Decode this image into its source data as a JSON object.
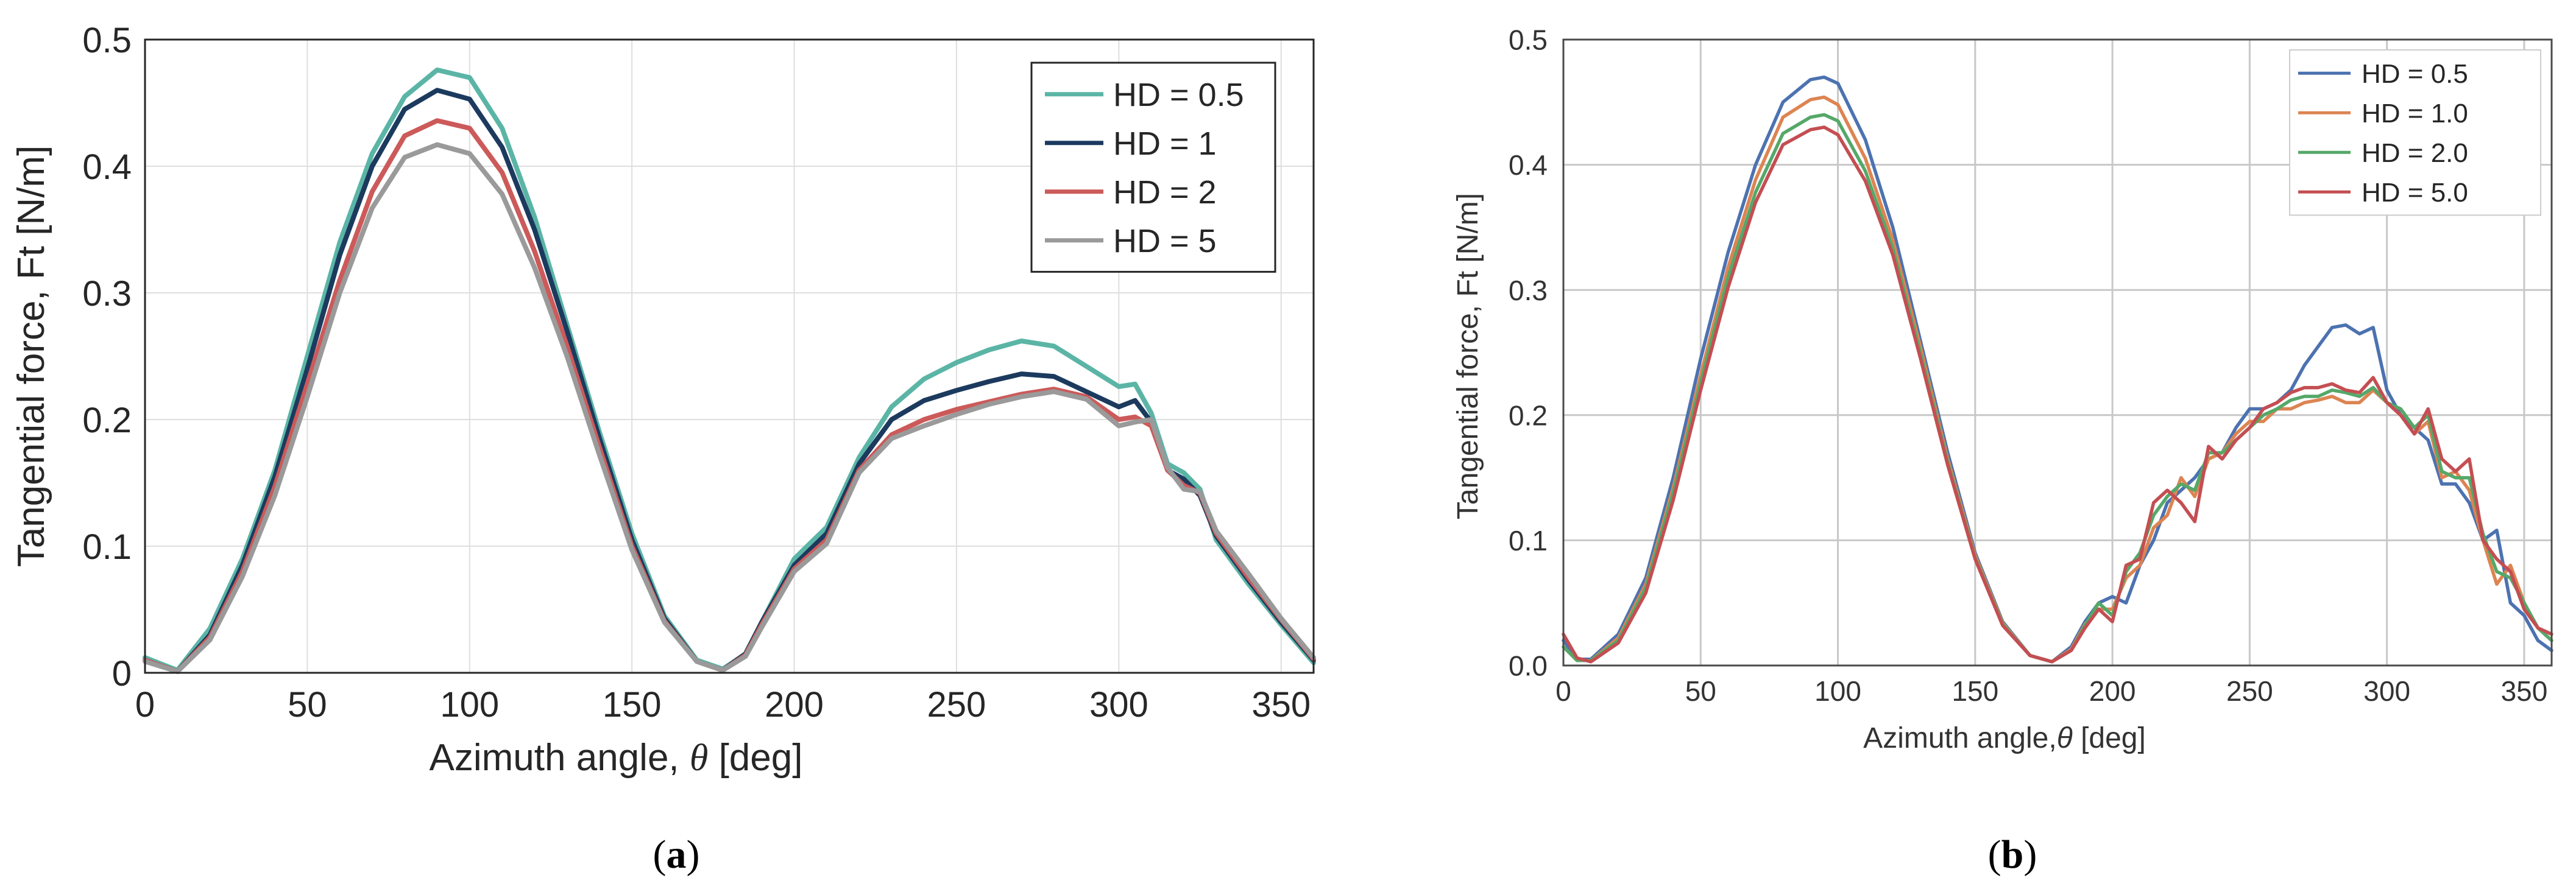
{
  "chart_data": [
    {
      "type": "line",
      "panel_label": "(a)",
      "title": "",
      "xlabel_main": "Azimuth angle, ",
      "xlabel_symbol": "θ",
      "xlabel_unit": " [deg]",
      "ylabel": "Tangential force, Ft [N/m]",
      "xlim": [
        0,
        360
      ],
      "ylim": [
        0,
        0.5
      ],
      "xticks": [
        0,
        50,
        100,
        150,
        200,
        250,
        300,
        350
      ],
      "yticks": [
        0,
        0.1,
        0.2,
        0.3,
        0.4,
        0.5
      ],
      "ytick_labels": [
        "0",
        "0.1",
        "0.2",
        "0.3",
        "0.4",
        "0.5"
      ],
      "grid": true,
      "legend_position": "top-right",
      "x": [
        0,
        10,
        20,
        30,
        40,
        50,
        60,
        70,
        80,
        90,
        100,
        110,
        120,
        130,
        140,
        150,
        160,
        170,
        178,
        185,
        190,
        200,
        210,
        220,
        230,
        240,
        250,
        260,
        270,
        280,
        290,
        300,
        305,
        310,
        315,
        320,
        325,
        330,
        340,
        350,
        360
      ],
      "series": [
        {
          "name": "HD = 0.5",
          "color": "#5bb5a6",
          "values": [
            0.012,
            0.002,
            0.035,
            0.09,
            0.16,
            0.25,
            0.34,
            0.41,
            0.455,
            0.476,
            0.47,
            0.43,
            0.36,
            0.275,
            0.19,
            0.11,
            0.045,
            0.01,
            0.003,
            0.015,
            0.04,
            0.09,
            0.115,
            0.17,
            0.21,
            0.232,
            0.245,
            0.255,
            0.262,
            0.258,
            0.242,
            0.226,
            0.228,
            0.205,
            0.165,
            0.158,
            0.145,
            0.105,
            0.07,
            0.038,
            0.008
          ]
        },
        {
          "name": "HD = 1",
          "color": "#1c3a5e",
          "values": [
            0.01,
            0.001,
            0.03,
            0.085,
            0.155,
            0.24,
            0.33,
            0.4,
            0.445,
            0.46,
            0.453,
            0.415,
            0.35,
            0.27,
            0.185,
            0.105,
            0.043,
            0.009,
            0.002,
            0.015,
            0.04,
            0.085,
            0.11,
            0.165,
            0.2,
            0.215,
            0.223,
            0.23,
            0.236,
            0.234,
            0.222,
            0.21,
            0.215,
            0.198,
            0.16,
            0.153,
            0.14,
            0.108,
            0.073,
            0.04,
            0.01
          ]
        },
        {
          "name": "HD = 2",
          "color": "#cc5a5a",
          "values": [
            0.01,
            0.001,
            0.028,
            0.08,
            0.147,
            0.228,
            0.31,
            0.38,
            0.424,
            0.436,
            0.43,
            0.395,
            0.333,
            0.258,
            0.178,
            0.1,
            0.041,
            0.009,
            0.002,
            0.014,
            0.038,
            0.082,
            0.105,
            0.16,
            0.188,
            0.2,
            0.208,
            0.214,
            0.22,
            0.224,
            0.218,
            0.2,
            0.202,
            0.195,
            0.16,
            0.148,
            0.142,
            0.11,
            0.075,
            0.042,
            0.011
          ]
        },
        {
          "name": "HD = 5",
          "color": "#9a9a9a",
          "values": [
            0.009,
            0.001,
            0.026,
            0.076,
            0.14,
            0.218,
            0.3,
            0.367,
            0.407,
            0.417,
            0.41,
            0.378,
            0.32,
            0.25,
            0.172,
            0.097,
            0.04,
            0.009,
            0.002,
            0.013,
            0.036,
            0.08,
            0.102,
            0.158,
            0.185,
            0.195,
            0.204,
            0.212,
            0.218,
            0.222,
            0.216,
            0.195,
            0.198,
            0.2,
            0.162,
            0.145,
            0.143,
            0.112,
            0.078,
            0.043,
            0.012
          ]
        }
      ]
    },
    {
      "type": "line",
      "panel_label": "(b)",
      "title": "",
      "xlabel_main": "Azimuth angle,",
      "xlabel_symbol": "θ",
      "xlabel_unit": "  [deg]",
      "ylabel": "Tangential force, Ft  [N/m]",
      "xlim": [
        0,
        360
      ],
      "ylim": [
        0,
        0.5
      ],
      "xticks": [
        0,
        50,
        100,
        150,
        200,
        250,
        300,
        350
      ],
      "yticks": [
        0,
        0.1,
        0.2,
        0.3,
        0.4,
        0.5
      ],
      "ytick_labels": [
        "0.0",
        "0.1",
        "0.2",
        "0.3",
        "0.4",
        "0.5"
      ],
      "grid": true,
      "legend_position": "top-right",
      "x": [
        0,
        5,
        10,
        20,
        30,
        40,
        50,
        60,
        70,
        80,
        90,
        95,
        100,
        110,
        120,
        130,
        140,
        150,
        160,
        170,
        178,
        185,
        190,
        195,
        200,
        205,
        210,
        215,
        220,
        225,
        230,
        235,
        240,
        245,
        250,
        255,
        260,
        265,
        270,
        275,
        280,
        285,
        290,
        295,
        300,
        305,
        310,
        315,
        320,
        325,
        330,
        335,
        340,
        345,
        350,
        355,
        360
      ],
      "series": [
        {
          "name": "HD = 0.5",
          "color": "#4c72b0",
          "values": [
            0.02,
            0.005,
            0.005,
            0.025,
            0.07,
            0.15,
            0.245,
            0.33,
            0.4,
            0.45,
            0.468,
            0.47,
            0.465,
            0.42,
            0.35,
            0.26,
            0.17,
            0.09,
            0.035,
            0.008,
            0.003,
            0.015,
            0.035,
            0.05,
            0.055,
            0.05,
            0.08,
            0.1,
            0.13,
            0.14,
            0.15,
            0.165,
            0.17,
            0.19,
            0.205,
            0.205,
            0.21,
            0.22,
            0.24,
            0.255,
            0.27,
            0.272,
            0.265,
            0.27,
            0.22,
            0.2,
            0.19,
            0.18,
            0.145,
            0.145,
            0.13,
            0.1,
            0.108,
            0.05,
            0.04,
            0.02,
            0.012
          ]
        },
        {
          "name": "HD = 1.0",
          "color": "#dd8452",
          "values": [
            0.015,
            0.004,
            0.004,
            0.022,
            0.065,
            0.142,
            0.232,
            0.318,
            0.388,
            0.438,
            0.452,
            0.454,
            0.448,
            0.405,
            0.34,
            0.255,
            0.165,
            0.088,
            0.034,
            0.008,
            0.003,
            0.013,
            0.033,
            0.045,
            0.045,
            0.07,
            0.08,
            0.11,
            0.12,
            0.15,
            0.135,
            0.165,
            0.17,
            0.185,
            0.195,
            0.195,
            0.205,
            0.205,
            0.21,
            0.212,
            0.215,
            0.21,
            0.21,
            0.22,
            0.21,
            0.2,
            0.185,
            0.195,
            0.15,
            0.155,
            0.14,
            0.1,
            0.065,
            0.08,
            0.05,
            0.03,
            0.02
          ]
        },
        {
          "name": "HD = 2.0",
          "color": "#55a868",
          "values": [
            0.015,
            0.004,
            0.004,
            0.02,
            0.062,
            0.138,
            0.226,
            0.31,
            0.378,
            0.425,
            0.438,
            0.44,
            0.435,
            0.395,
            0.333,
            0.25,
            0.162,
            0.086,
            0.033,
            0.008,
            0.003,
            0.012,
            0.032,
            0.05,
            0.04,
            0.075,
            0.09,
            0.12,
            0.135,
            0.145,
            0.14,
            0.17,
            0.17,
            0.18,
            0.19,
            0.2,
            0.205,
            0.212,
            0.215,
            0.215,
            0.22,
            0.218,
            0.215,
            0.222,
            0.21,
            0.205,
            0.19,
            0.2,
            0.155,
            0.15,
            0.15,
            0.105,
            0.075,
            0.07,
            0.05,
            0.03,
            0.02
          ]
        },
        {
          "name": "HD = 5.0",
          "color": "#c44e52",
          "values": [
            0.025,
            0.006,
            0.003,
            0.018,
            0.058,
            0.132,
            0.22,
            0.302,
            0.37,
            0.416,
            0.428,
            0.43,
            0.424,
            0.387,
            0.328,
            0.246,
            0.16,
            0.085,
            0.032,
            0.008,
            0.003,
            0.012,
            0.03,
            0.045,
            0.035,
            0.08,
            0.085,
            0.13,
            0.14,
            0.13,
            0.115,
            0.175,
            0.165,
            0.18,
            0.19,
            0.205,
            0.21,
            0.218,
            0.222,
            0.222,
            0.225,
            0.22,
            0.218,
            0.23,
            0.21,
            0.2,
            0.185,
            0.205,
            0.165,
            0.155,
            0.165,
            0.1,
            0.085,
            0.075,
            0.045,
            0.03,
            0.025
          ]
        }
      ]
    }
  ]
}
